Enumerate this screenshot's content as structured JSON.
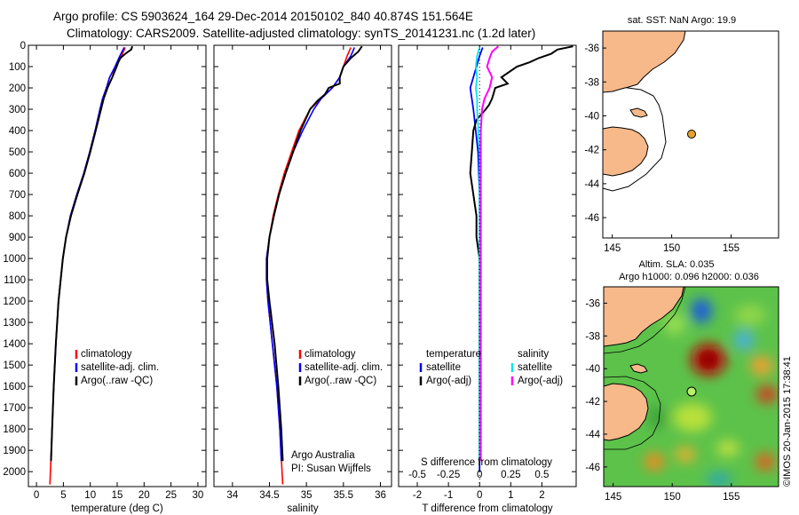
{
  "header": {
    "line1": "Argo profile: CS 5903624_164 29-Dec-2014 20150102_840 40.874S 151.564E",
    "line2": "Climatology: CARS2009. Satellite-adjusted climatology: synTS_20141231.nc (1.2d later)"
  },
  "colors": {
    "climatology": "#ff0000",
    "satellite": "#0000ff",
    "argo": "#000000",
    "s_satellite": "#00e5ee",
    "s_argo": "#ff00ff",
    "land": "#f7b98a",
    "marker": "#e5a22d"
  },
  "chart_data": [
    {
      "type": "line",
      "id": "temperature",
      "xlabel": "temperature (deg C)",
      "xticks": [
        0,
        5,
        10,
        15,
        20,
        25,
        30
      ],
      "xlim": [
        -1.5,
        31.5
      ],
      "yticks": [
        0,
        100,
        200,
        300,
        400,
        500,
        600,
        700,
        800,
        900,
        1000,
        1100,
        1200,
        1300,
        1400,
        1500,
        1600,
        1700,
        1800,
        1900,
        2000
      ],
      "ylim": [
        0,
        2070
      ],
      "legend": [
        "climatology",
        "satellite-adj. clim.",
        "Argo(..raw -QC)"
      ],
      "series": [
        {
          "name": "climatology",
          "depth": [
            10,
            50,
            100,
            150,
            200,
            250,
            300,
            400,
            500,
            600,
            700,
            800,
            900,
            1000,
            1200,
            1400,
            1600,
            1800,
            2000,
            2060
          ],
          "values": [
            16.5,
            15.8,
            14.8,
            13.6,
            13.0,
            12.3,
            11.8,
            10.9,
            9.9,
            8.8,
            7.5,
            6.3,
            5.5,
            4.9,
            4.1,
            3.6,
            3.2,
            2.9,
            2.6,
            2.5
          ]
        },
        {
          "name": "satellite-adj. clim.",
          "depth": [
            10,
            50,
            100,
            150,
            200,
            250,
            300,
            400,
            500,
            600,
            700,
            800,
            900,
            1000,
            1200,
            1400,
            1600,
            1800,
            1950
          ],
          "values": [
            16.3,
            15.5,
            14.6,
            13.6,
            13.0,
            12.3,
            11.8,
            10.9,
            9.9,
            8.8,
            7.5,
            6.3,
            5.5,
            4.9,
            4.1,
            3.6,
            3.2,
            2.9,
            2.7
          ]
        },
        {
          "name": "Argo(..raw -QC)",
          "depth": [
            5,
            20,
            40,
            60,
            80,
            100,
            150,
            200,
            250,
            300,
            400,
            500,
            600,
            700,
            800,
            900,
            1000,
            1200,
            1400,
            1600,
            1800,
            1950
          ],
          "values": [
            17.8,
            17.6,
            16.5,
            15.6,
            15.2,
            14.9,
            14.1,
            13.2,
            12.5,
            12.0,
            11.0,
            10.0,
            8.9,
            7.6,
            6.4,
            5.5,
            4.9,
            4.1,
            3.6,
            3.2,
            2.9,
            2.7
          ]
        }
      ]
    },
    {
      "type": "line",
      "id": "salinity",
      "xlabel": "salinity",
      "xticks": [
        34,
        34.5,
        35,
        35.5,
        36
      ],
      "xlim": [
        33.75,
        36.15
      ],
      "ylim": [
        0,
        2070
      ],
      "legend": [
        "climatology",
        "satellite-adj. clim.",
        "Argo(..raw -QC)"
      ],
      "annotation": [
        "Argo Australia",
        "PI: Susan Wijffels"
      ],
      "series": [
        {
          "name": "climatology",
          "depth": [
            10,
            50,
            100,
            150,
            200,
            250,
            300,
            400,
            500,
            600,
            700,
            800,
            900,
            1000,
            1100,
            1200,
            1400,
            1600,
            1800,
            2000,
            2060
          ],
          "values": [
            35.6,
            35.55,
            35.5,
            35.45,
            35.35,
            35.2,
            35.05,
            34.9,
            34.8,
            34.7,
            34.62,
            34.55,
            34.5,
            34.46,
            34.46,
            34.48,
            34.54,
            34.6,
            34.64,
            34.67,
            34.68
          ]
        },
        {
          "name": "satellite-adj. clim.",
          "depth": [
            10,
            50,
            100,
            150,
            200,
            250,
            300,
            400,
            500,
            600,
            700,
            800,
            900,
            1000,
            1100,
            1200,
            1400,
            1600,
            1800,
            1950
          ],
          "values": [
            35.65,
            35.6,
            35.5,
            35.45,
            35.35,
            35.2,
            35.1,
            34.95,
            34.82,
            34.72,
            34.63,
            34.56,
            34.5,
            34.46,
            34.46,
            34.48,
            34.54,
            34.6,
            34.64,
            34.66
          ]
        },
        {
          "name": "Argo(..raw -QC)",
          "depth": [
            5,
            30,
            60,
            100,
            150,
            180,
            200,
            230,
            260,
            300,
            400,
            500,
            600,
            700,
            800,
            900,
            1000,
            1100,
            1200,
            1400,
            1600,
            1800,
            1950
          ],
          "values": [
            35.75,
            35.7,
            35.6,
            35.5,
            35.45,
            35.45,
            35.3,
            35.25,
            35.15,
            35.05,
            34.92,
            34.82,
            34.72,
            34.63,
            34.56,
            34.5,
            34.47,
            34.47,
            34.5,
            34.57,
            34.62,
            34.66,
            34.68
          ]
        }
      ]
    },
    {
      "type": "line",
      "id": "difference",
      "xlabel": "T difference from climatology",
      "xlabel_top": "S difference from climatology",
      "xticks": [
        -2,
        -1,
        0,
        1,
        2
      ],
      "xticks_top": [
        "-0.5",
        "-0.25",
        "0",
        "0.25",
        "0.5"
      ],
      "xlim": [
        -2.6,
        3.1
      ],
      "ylim": [
        0,
        2070
      ],
      "legend": {
        "temperature": [
          "temperature",
          "satellite",
          "Argo(-adj)"
        ],
        "salinity": [
          "salinity",
          "satellite",
          "Argo(-adj)"
        ]
      },
      "series": [
        {
          "name": "T satellite",
          "depth": [
            10,
            50,
            100,
            150,
            200,
            300,
            500,
            700,
            1000,
            1500,
            2000
          ],
          "values": [
            0.1,
            0.0,
            -0.1,
            -0.2,
            -0.3,
            -0.2,
            -0.05,
            0,
            0,
            0,
            0
          ]
        },
        {
          "name": "T Argo(-adj)",
          "depth": [
            5,
            20,
            40,
            60,
            80,
            100,
            150,
            180,
            200,
            250,
            280,
            300,
            350,
            400,
            500,
            600,
            700,
            800,
            900,
            1000,
            1200,
            1400,
            1600,
            1800,
            1950
          ],
          "values": [
            3.0,
            2.5,
            2.3,
            1.9,
            1.6,
            1.2,
            0.7,
            0.9,
            0.5,
            0.4,
            0.3,
            0.2,
            -0.1,
            -0.2,
            -0.25,
            -0.3,
            -0.2,
            -0.1,
            -0.1,
            0,
            0,
            0,
            0,
            0,
            0
          ]
        },
        {
          "name": "S satellite",
          "depth": [
            10,
            50,
            100,
            150,
            200,
            250,
            300,
            400,
            500,
            700,
            1000,
            1500,
            1950
          ],
          "values": [
            0.0,
            -0.02,
            -0.03,
            -0.02,
            -0.03,
            -0.02,
            -0.02,
            -0.01,
            0,
            0,
            0,
            0,
            0
          ]
        },
        {
          "name": "S Argo(-adj)",
          "depth": [
            5,
            30,
            60,
            100,
            150,
            200,
            250,
            300,
            400,
            500,
            700,
            1000,
            1500,
            1950
          ],
          "values": [
            0.15,
            0.1,
            0.08,
            0.06,
            0.1,
            0.08,
            0.04,
            0.02,
            0.01,
            0.01,
            0.01,
            0.01,
            0.01,
            0.01
          ]
        }
      ]
    },
    {
      "type": "map",
      "id": "sst-map",
      "title": "sat. SST: NaN Argo: 19.9",
      "xticks": [
        145,
        150,
        155
      ],
      "yticks": [
        -36,
        -38,
        -40,
        -42,
        -44,
        -46
      ],
      "xlim": [
        144.2,
        159
      ],
      "ylim": [
        -47.2,
        -35.0
      ],
      "float_position": [
        151.56,
        -40.87
      ]
    },
    {
      "type": "heatmap",
      "id": "sla-map",
      "title": "Altim. SLA: 0.035",
      "subtitle": "Argo h1000: 0.096 h2000: 0.036",
      "xticks": [
        145,
        150,
        155
      ],
      "yticks": [
        -36,
        -38,
        -40,
        -42,
        -44,
        -46
      ],
      "xlim": [
        144.2,
        159
      ],
      "ylim": [
        -47.2,
        -35.0
      ],
      "float_position": [
        151.56,
        -40.87
      ],
      "side_text": "©IMOS 20-Jan-2015 17:38:41"
    }
  ]
}
